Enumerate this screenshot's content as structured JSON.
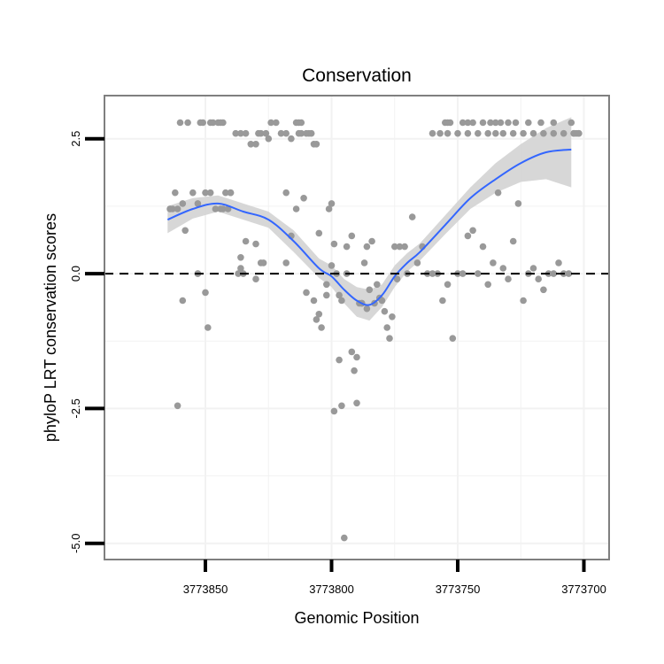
{
  "chart_data": {
    "type": "scatter",
    "title": "Conservation",
    "xlabel": "Genomic Position",
    "ylabel": "phyloP LRT conservation scores",
    "xlim": [
      3773890,
      3773690
    ],
    "x_reversed": true,
    "ylim": [
      -5.3,
      3.3
    ],
    "x_ticks": [
      3773850,
      3773800,
      3773750,
      3773700
    ],
    "x_tick_labels": [
      "3773850",
      "3773800",
      "3773750",
      "3773700"
    ],
    "y_ticks": [
      -5.0,
      -2.5,
      0.0,
      2.5
    ],
    "y_tick_labels": [
      "-5.0",
      "-2.5",
      "0.0",
      "2.5"
    ],
    "reference_line": {
      "y": 0.0,
      "style": "dashed"
    },
    "grid": true,
    "colors": {
      "points": "#999999",
      "smooth_line": "#3366FF",
      "confidence_band": "#D3D3D3",
      "grid": "#F2F2F2",
      "border": "#7F7F7F"
    },
    "smooth": {
      "x": [
        3773865,
        3773855,
        3773845,
        3773835,
        3773825,
        3773815,
        3773805,
        3773800,
        3773795,
        3773790,
        3773785,
        3773780,
        3773775,
        3773770,
        3773765,
        3773755,
        3773745,
        3773735,
        3773725,
        3773715,
        3773705
      ],
      "y": [
        1.0,
        1.2,
        1.3,
        1.15,
        1.0,
        0.6,
        0.1,
        -0.05,
        -0.3,
        -0.5,
        -0.58,
        -0.4,
        -0.05,
        0.2,
        0.4,
        0.9,
        1.4,
        1.75,
        2.05,
        2.25,
        2.3
      ],
      "lower": [
        0.75,
        1.02,
        1.15,
        1.0,
        0.85,
        0.4,
        -0.08,
        -0.25,
        -0.55,
        -0.8,
        -0.87,
        -0.62,
        -0.25,
        0.04,
        0.24,
        0.73,
        1.2,
        1.5,
        1.7,
        1.75,
        1.6
      ],
      "upper": [
        1.25,
        1.4,
        1.45,
        1.3,
        1.15,
        0.8,
        0.28,
        0.15,
        -0.1,
        -0.25,
        -0.3,
        -0.2,
        0.15,
        0.38,
        0.56,
        1.08,
        1.6,
        2.05,
        2.4,
        2.7,
        2.9
      ]
    },
    "points": {
      "x": [
        3773864,
        3773863,
        3773862,
        3773861,
        3773859,
        3773858,
        3773855,
        3773853,
        3773850,
        3773848,
        3773846,
        3773844,
        3773842,
        3773840,
        3773843,
        3773848,
        3773851,
        3773852,
        3773847,
        3773845,
        3773844,
        3773859,
        3773861,
        3773857,
        3773853,
        3773850,
        3773864,
        3773860,
        3773853,
        3773849,
        3773838,
        3773836,
        3773834,
        3773832,
        3773830,
        3773828,
        3773826,
        3773824,
        3773822,
        3773820,
        3773818,
        3773816,
        3773814,
        3773813,
        3773812,
        3773818,
        3773830,
        3773834,
        3773836,
        3773837,
        3773830,
        3773828,
        3773843,
        3773840,
        3773841,
        3773835,
        3773827,
        3773836,
        3773829,
        3773825,
        3773818,
        3773814,
        3773810,
        3773809,
        3773808,
        3773807,
        3773806,
        3773805,
        3773804,
        3773802,
        3773801,
        3773811,
        3773812,
        3773813,
        3773816,
        3773810,
        3773807,
        3773805,
        3773806,
        3773800,
        3773802,
        3773799,
        3773798,
        3773797,
        3773796,
        3773794,
        3773792,
        3773791,
        3773790,
        3773789,
        3773788,
        3773787,
        3773786,
        3773785,
        3773784,
        3773783,
        3773782,
        3773781,
        3773780,
        3773779,
        3773778,
        3773777,
        3773776,
        3773775,
        3773774,
        3773773,
        3773771,
        3773770,
        3773768,
        3773766,
        3773764,
        3773762,
        3773760,
        3773758,
        3773756,
        3773754,
        3773752,
        3773750,
        3773748,
        3773746,
        3773744,
        3773742,
        3773740,
        3773738,
        3773736,
        3773734,
        3773732,
        3773730,
        3773728,
        3773726,
        3773724,
        3773722,
        3773720,
        3773718,
        3773716,
        3773714,
        3773712,
        3773710,
        3773708,
        3773706,
        3773704,
        3773703,
        3773702,
        3773755,
        3773754,
        3773753,
        3773748,
        3773746,
        3773744,
        3773740,
        3773737,
        3773735,
        3773733,
        3773730,
        3773727,
        3773722,
        3773717,
        3773712,
        3773705,
        3773760,
        3773757,
        3773754,
        3773750,
        3773746,
        3773742,
        3773738,
        3773735,
        3773732,
        3773728,
        3773724,
        3773720,
        3773716,
        3773712,
        3773708,
        3773704,
        3773702,
        3773790,
        3773794,
        3773796,
        3773799,
        3773795,
        3773797,
        3773792,
        3773788,
        3773786,
        3773800
      ],
      "y": [
        1.2,
        1.2,
        1.5,
        1.2,
        1.3,
        0.8,
        1.5,
        1.3,
        1.5,
        1.5,
        1.2,
        1.2,
        1.5,
        1.5,
        2.8,
        2.8,
        2.8,
        2.8,
        2.8,
        2.8,
        2.8,
        -0.5,
        -2.45,
        2.8,
        0.0,
        -0.35,
        1.2,
        2.8,
        0.0,
        -1.0,
        2.6,
        2.6,
        2.6,
        2.4,
        2.4,
        2.6,
        2.6,
        2.8,
        2.8,
        2.6,
        2.6,
        2.5,
        2.8,
        2.8,
        2.8,
        1.5,
        0.55,
        0.6,
        0.3,
        0.0,
        -0.1,
        0.2,
        1.2,
        1.5,
        1.2,
        0.0,
        0.2,
        0.1,
        2.6,
        2.5,
        0.2,
        1.2,
        2.6,
        2.6,
        2.6,
        2.4,
        2.4,
        0.75,
        -1.0,
        -0.2,
        1.2,
        1.4,
        2.6,
        2.6,
        0.7,
        -0.35,
        -0.5,
        -0.75,
        -0.85,
        1.3,
        -0.4,
        0.55,
        0.0,
        -0.4,
        -0.5,
        0.0,
        0.7,
        -1.8,
        -2.4,
        -0.55,
        -0.55,
        0.2,
        -0.65,
        -0.3,
        0.6,
        -0.55,
        -0.2,
        -0.45,
        -0.5,
        -0.7,
        -1.0,
        -1.2,
        -0.8,
        0.5,
        -0.1,
        0.5,
        0.5,
        0.0,
        1.05,
        0.2,
        0.5,
        0.0,
        0.0,
        0.0,
        -0.5,
        -0.2,
        -1.2,
        0.0,
        0.0,
        0.7,
        0.8,
        0.0,
        0.5,
        -0.2,
        0.2,
        1.5,
        0.1,
        -0.1,
        0.6,
        1.3,
        -0.5,
        0.0,
        0.1,
        -0.1,
        -0.3,
        0.0,
        0.0,
        0.2,
        0.0,
        0.0,
        2.6,
        2.6,
        2.6,
        2.8,
        2.8,
        2.8,
        2.8,
        2.8,
        2.8,
        2.8,
        2.8,
        2.8,
        2.8,
        2.8,
        2.8,
        2.8,
        2.8,
        2.8,
        2.8,
        2.6,
        2.6,
        2.6,
        2.6,
        2.6,
        2.6,
        2.6,
        2.6,
        2.6,
        2.6,
        2.6,
        2.6,
        2.6,
        2.6,
        2.6,
        2.6,
        2.6,
        -1.55,
        0.5,
        -2.45,
        -2.55,
        -4.9,
        -1.6,
        -1.45,
        -0.55,
        0.5,
        0.15
      ]
    }
  }
}
